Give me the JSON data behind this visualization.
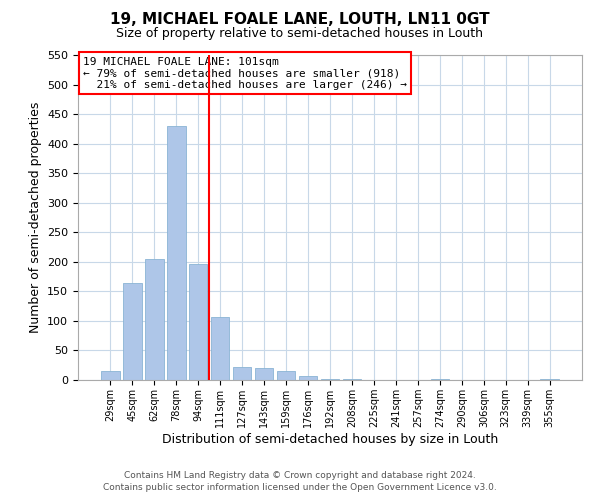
{
  "title": "19, MICHAEL FOALE LANE, LOUTH, LN11 0GT",
  "subtitle": "Size of property relative to semi-detached houses in Louth",
  "xlabel": "Distribution of semi-detached houses by size in Louth",
  "ylabel": "Number of semi-detached properties",
  "bar_labels": [
    "29sqm",
    "45sqm",
    "62sqm",
    "78sqm",
    "94sqm",
    "111sqm",
    "127sqm",
    "143sqm",
    "159sqm",
    "176sqm",
    "192sqm",
    "208sqm",
    "225sqm",
    "241sqm",
    "257sqm",
    "274sqm",
    "290sqm",
    "306sqm",
    "323sqm",
    "339sqm",
    "355sqm"
  ],
  "bar_heights": [
    15,
    165,
    205,
    430,
    197,
    107,
    22,
    20,
    15,
    7,
    1,
    1,
    0,
    0,
    0,
    1,
    0,
    0,
    0,
    0,
    1
  ],
  "bar_color": "#aec6e8",
  "bar_edge_color": "#8ab4d4",
  "pct_smaller": 79,
  "n_smaller": 918,
  "pct_larger": 21,
  "n_larger": 246,
  "vline_x_index": 4.5,
  "ylim": [
    0,
    550
  ],
  "yticks": [
    0,
    50,
    100,
    150,
    200,
    250,
    300,
    350,
    400,
    450,
    500,
    550
  ],
  "footer_line1": "Contains HM Land Registry data © Crown copyright and database right 2024.",
  "footer_line2": "Contains public sector information licensed under the Open Government Licence v3.0.",
  "background_color": "#ffffff",
  "grid_color": "#c8d8e8"
}
